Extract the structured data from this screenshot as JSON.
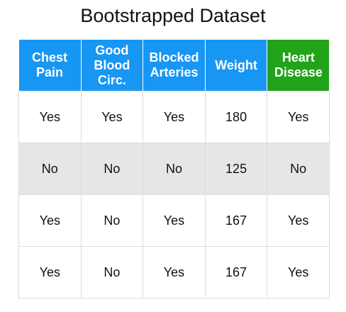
{
  "title": "Bootstrapped Dataset",
  "colors": {
    "feature_header": "#1896f4",
    "target_header": "#22a31a",
    "shaded_row": "#e6e6e6"
  },
  "table": {
    "headers": [
      "Chest\nPain",
      "Good\nBlood\nCirc.",
      "Blocked\nArteries",
      "Weight",
      "Heart\nDisease"
    ],
    "rows": [
      [
        "Yes",
        "Yes",
        "Yes",
        "180",
        "Yes"
      ],
      [
        "No",
        "No",
        "No",
        "125",
        "No"
      ],
      [
        "Yes",
        "No",
        "Yes",
        "167",
        "Yes"
      ],
      [
        "Yes",
        "No",
        "Yes",
        "167",
        "Yes"
      ]
    ]
  }
}
